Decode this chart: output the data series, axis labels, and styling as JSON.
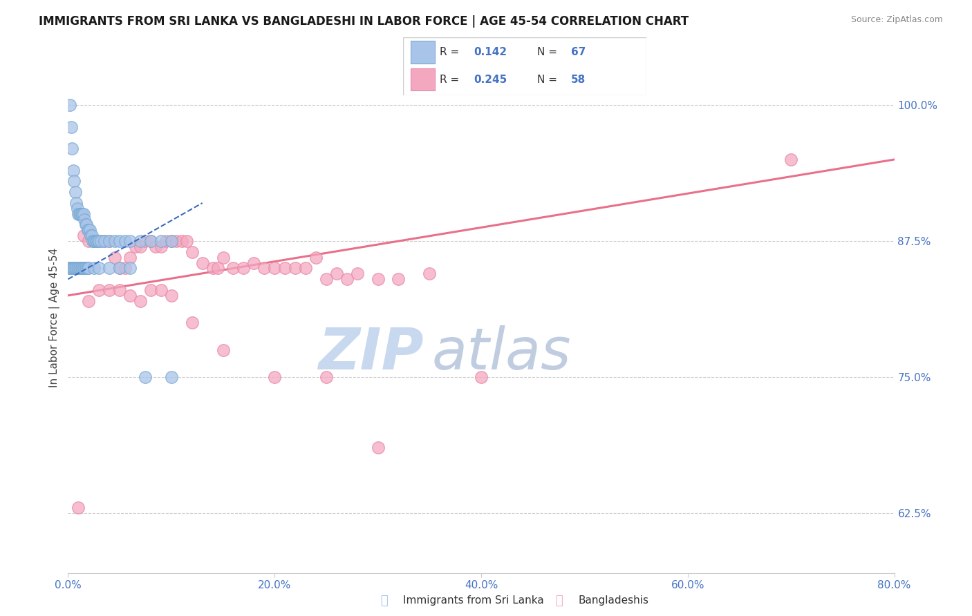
{
  "title": "IMMIGRANTS FROM SRI LANKA VS BANGLADESHI IN LABOR FORCE | AGE 45-54 CORRELATION CHART",
  "source": "Source: ZipAtlas.com",
  "ylabel_left": "In Labor Force | Age 45-54",
  "xlim": [
    0.0,
    80.0
  ],
  "ylim": [
    57.0,
    104.0
  ],
  "yticks": [
    62.5,
    75.0,
    87.5,
    100.0
  ],
  "xticks": [
    0.0,
    20.0,
    40.0,
    60.0,
    80.0
  ],
  "sri_lanka_R": "0.142",
  "sri_lanka_N": "67",
  "bangladeshi_R": "0.245",
  "bangladeshi_N": "58",
  "sri_lanka_color": "#a8c4e8",
  "sri_lanka_edge": "#7aaad4",
  "bangladeshi_color": "#f4a8c0",
  "bangladeshi_edge": "#e888a8",
  "sri_lanka_line_color": "#3a6bbf",
  "bangladeshi_line_color": "#e8708a",
  "watermark_zip_color": "#c8d8ef",
  "watermark_atlas_color": "#c0cce0",
  "legend_label_sri": "Immigrants from Sri Lanka",
  "legend_label_ban": "Bangladeshis",
  "title_fontsize": 12,
  "blue_text_color": "#4472c4",
  "sri_lanka_x": [
    0.2,
    0.3,
    0.4,
    0.5,
    0.6,
    0.7,
    0.8,
    0.9,
    1.0,
    1.1,
    1.2,
    1.3,
    1.4,
    1.5,
    1.6,
    1.7,
    1.8,
    1.9,
    2.0,
    2.1,
    2.2,
    2.3,
    2.4,
    2.5,
    2.6,
    2.7,
    2.8,
    2.9,
    3.0,
    3.2,
    3.5,
    4.0,
    4.5,
    5.0,
    5.5,
    6.0,
    7.0,
    8.0,
    9.0,
    10.0,
    0.1,
    0.2,
    0.3,
    0.4,
    0.5,
    0.6,
    0.7,
    0.8,
    0.9,
    1.0,
    1.1,
    1.2,
    1.3,
    1.4,
    1.5,
    1.6,
    1.7,
    1.8,
    1.9,
    2.0,
    2.5,
    3.0,
    4.0,
    5.0,
    6.0,
    7.5,
    10.0
  ],
  "sri_lanka_y": [
    100.0,
    98.0,
    96.0,
    94.0,
    93.0,
    92.0,
    91.0,
    90.5,
    90.0,
    90.0,
    90.0,
    90.0,
    90.0,
    90.0,
    89.5,
    89.0,
    89.0,
    88.5,
    88.5,
    88.5,
    88.0,
    88.0,
    87.5,
    87.5,
    87.5,
    87.5,
    87.5,
    87.5,
    87.5,
    87.5,
    87.5,
    87.5,
    87.5,
    87.5,
    87.5,
    87.5,
    87.5,
    87.5,
    87.5,
    87.5,
    85.0,
    85.0,
    85.0,
    85.0,
    85.0,
    85.0,
    85.0,
    85.0,
    85.0,
    85.0,
    85.0,
    85.0,
    85.0,
    85.0,
    85.0,
    85.0,
    85.0,
    85.0,
    85.0,
    85.0,
    85.0,
    85.0,
    85.0,
    85.0,
    85.0,
    75.0,
    75.0
  ],
  "bangladeshi_x": [
    1.5,
    2.0,
    2.5,
    3.5,
    4.0,
    4.5,
    5.0,
    5.5,
    6.0,
    6.5,
    7.0,
    7.5,
    8.0,
    8.5,
    9.0,
    9.5,
    10.0,
    10.5,
    11.0,
    11.5,
    12.0,
    13.0,
    14.0,
    14.5,
    15.0,
    16.0,
    17.0,
    18.0,
    19.0,
    20.0,
    21.0,
    22.0,
    23.0,
    24.0,
    25.0,
    26.0,
    27.0,
    28.0,
    30.0,
    32.0,
    35.0,
    2.0,
    3.0,
    4.0,
    5.0,
    6.0,
    7.0,
    8.0,
    9.0,
    10.0,
    12.0,
    15.0,
    20.0,
    25.0,
    30.0,
    40.0,
    70.0,
    1.0
  ],
  "bangladeshi_y": [
    88.0,
    87.5,
    87.5,
    87.5,
    87.5,
    86.0,
    85.0,
    85.0,
    86.0,
    87.0,
    87.0,
    87.5,
    87.5,
    87.0,
    87.0,
    87.5,
    87.5,
    87.5,
    87.5,
    87.5,
    86.5,
    85.5,
    85.0,
    85.0,
    86.0,
    85.0,
    85.0,
    85.5,
    85.0,
    85.0,
    85.0,
    85.0,
    85.0,
    86.0,
    84.0,
    84.5,
    84.0,
    84.5,
    84.0,
    84.0,
    84.5,
    82.0,
    83.0,
    83.0,
    83.0,
    82.5,
    82.0,
    83.0,
    83.0,
    82.5,
    80.0,
    77.5,
    75.0,
    75.0,
    68.5,
    75.0,
    95.0,
    63.0
  ],
  "ban_regression_x0": 0.0,
  "ban_regression_y0": 82.5,
  "ban_regression_x1": 80.0,
  "ban_regression_y1": 95.0,
  "sri_regression_x0": 0.0,
  "sri_regression_y0": 84.0,
  "sri_regression_x1": 13.0,
  "sri_regression_y1": 91.0
}
